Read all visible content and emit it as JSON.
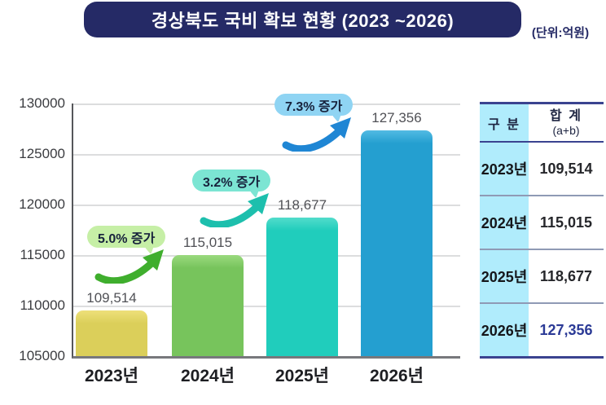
{
  "title": "경상북도 국비 확보 현황 (2023 ~2026)",
  "unit_label": "(단위:억원)",
  "colors": {
    "banner_navy": "#252a66",
    "table_border_navy": "#3a4390",
    "table_col_cyan": "#b0ecfc",
    "grid_gray": "#dcddde"
  },
  "chart_data": {
    "type": "bar",
    "title": "경상북도 국비 확보 현황 (2023 ~2026)",
    "unit": "억원",
    "categories": [
      "2023년",
      "2024년",
      "2025년",
      "2026년"
    ],
    "values": [
      109514,
      115015,
      118677,
      127356
    ],
    "value_labels": [
      "109,514",
      "115,015",
      "118,677",
      "127,356"
    ],
    "bar_colors": [
      "#dbcf5a",
      "#77c45c",
      "#20cdbc",
      "#249fd0"
    ],
    "bar_cap_colors": [
      "#eee07a",
      "#9ada7e",
      "#52dccb",
      "#52bbe3"
    ],
    "ylim": [
      105000,
      130000
    ],
    "yticks": [
      "105000",
      "110000",
      "115000",
      "120000",
      "125000",
      "130000"
    ],
    "grid": true,
    "legend": null,
    "annotations": [
      {
        "label": "5.0% 증가",
        "bg": "#c6efa6",
        "arrow": "#3fae2d",
        "applies_to": "2024년"
      },
      {
        "label": "3.2% 증가",
        "bg": "#7ce5d3",
        "arrow": "#1dbfad",
        "applies_to": "2025년"
      },
      {
        "label": "7.3% 증가",
        "bg": "#8fd4f3",
        "arrow": "#1f86d4",
        "applies_to": "2026년"
      }
    ]
  },
  "table": {
    "headers": {
      "col1": "구 분",
      "col2": "합 계",
      "col2_sub": "(a+b)"
    },
    "highlight_color": "#2b3a96",
    "rows": [
      {
        "year": "2023년",
        "value": "109,514",
        "highlight": false
      },
      {
        "year": "2024년",
        "value": "115,015",
        "highlight": false
      },
      {
        "year": "2025년",
        "value": "118,677",
        "highlight": false
      },
      {
        "year": "2026년",
        "value": "127,356",
        "highlight": true
      }
    ]
  }
}
